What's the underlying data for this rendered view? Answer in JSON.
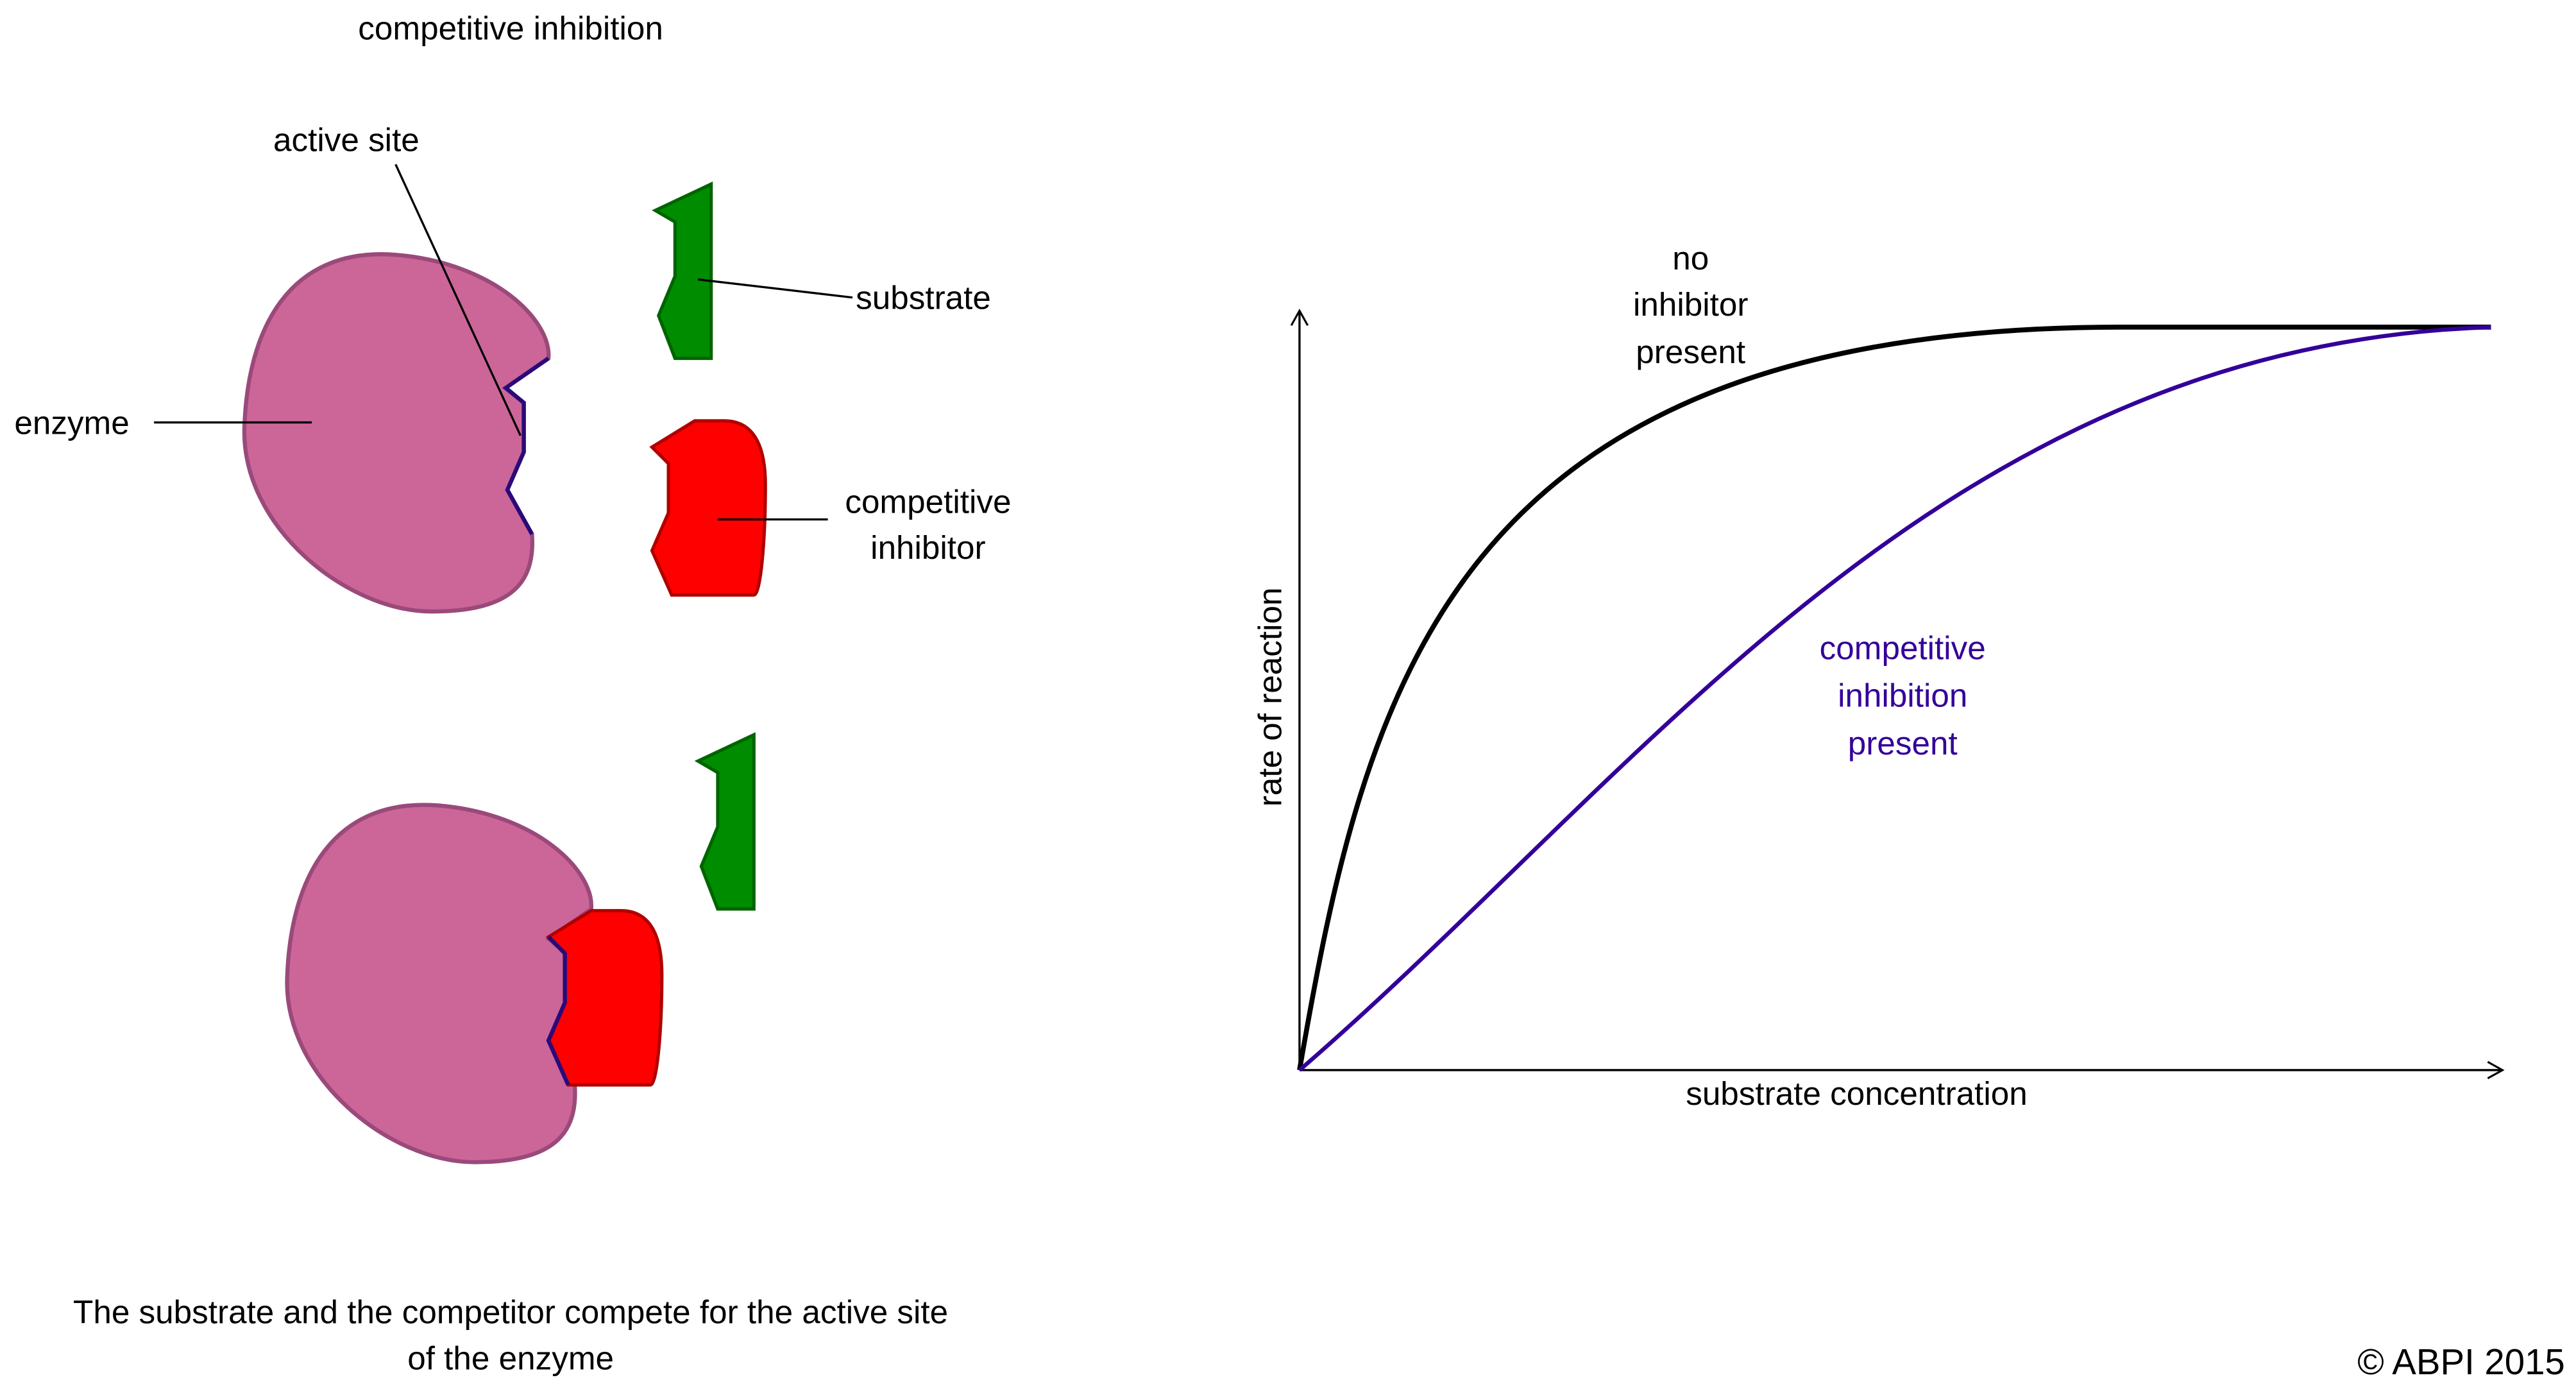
{
  "header": {
    "title": "competitive inhibition"
  },
  "diagram": {
    "active_site": "active site",
    "substrate": "substrate",
    "enzyme": "enzyme",
    "inhibitor": [
      "competitive",
      "inhibitor"
    ]
  },
  "graph": {
    "no_inhibitor": [
      "no",
      "inhibitor",
      "present"
    ],
    "with_inhibitor": [
      "competitive",
      "inhibition",
      "present"
    ],
    "y_label": "rate of reaction",
    "x_label": "substrate concentration"
  },
  "caption": [
    "The substrate and the competitor compete for the active site",
    "of the enzyme"
  ],
  "copyright": "© ABPI 2015"
}
